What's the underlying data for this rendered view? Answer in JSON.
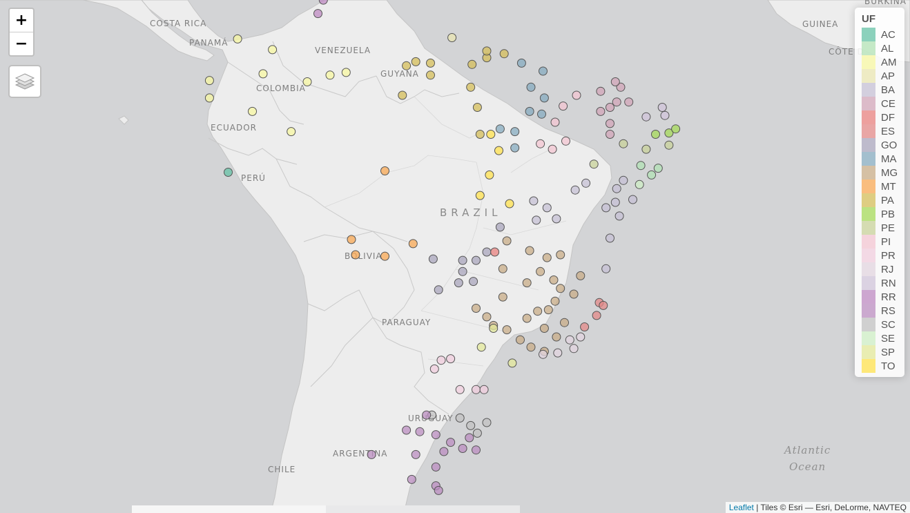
{
  "map": {
    "labels": {
      "costa_rica": "COSTA RICA",
      "panama": "PANAMÁ",
      "venezuela": "VENEZUELA",
      "guyana": "GUYANA",
      "colombia": "COLOMBIA",
      "ecuador": "ECUADOR",
      "peru": "PERÚ",
      "brazil": "BRAZIL",
      "bolivia": "BOLIVIA",
      "paraguay": "PARAGUAY",
      "uruguay": "URUGUAY",
      "argentina": "ARGENTINA",
      "chile": "CHILE",
      "guinea": "GUINEA",
      "cote": "CÔTE D",
      "burkina": "BURKINA",
      "atlantic": "Atlantic",
      "ocean": "Ocean"
    }
  },
  "controls": {
    "zoom_in": "+",
    "zoom_out": "−"
  },
  "legend": {
    "title": "UF",
    "items": [
      {
        "label": "AC",
        "color": "#66c2a5"
      },
      {
        "label": "AL",
        "color": "#b2e2b4"
      },
      {
        "label": "AM",
        "color": "#f7f7a1"
      },
      {
        "label": "AP",
        "color": "#e9e5b2"
      },
      {
        "label": "BA",
        "color": "#c5c0d4"
      },
      {
        "label": "CE",
        "color": "#d1a6b8"
      },
      {
        "label": "DF",
        "color": "#e8827f"
      },
      {
        "label": "ES",
        "color": "#e38a88"
      },
      {
        "label": "GO",
        "color": "#a9a6bc"
      },
      {
        "label": "MA",
        "color": "#85abbf"
      },
      {
        "label": "MG",
        "color": "#c8ac87"
      },
      {
        "label": "MT",
        "color": "#f8a854"
      },
      {
        "label": "PA",
        "color": "#d4be5a"
      },
      {
        "label": "PB",
        "color": "#a6d95a"
      },
      {
        "label": "PE",
        "color": "#c8d29a"
      },
      {
        "label": "PI",
        "color": "#f3c6d2"
      },
      {
        "label": "PR",
        "color": "#f0cddd"
      },
      {
        "label": "RJ",
        "color": "#e2d4df"
      },
      {
        "label": "RN",
        "color": "#d0c4d9"
      },
      {
        "label": "RR",
        "color": "#bd8ac1"
      },
      {
        "label": "RS",
        "color": "#bb8ec0"
      },
      {
        "label": "SC",
        "color": "#c2c2c2"
      },
      {
        "label": "SE",
        "color": "#cdeec4"
      },
      {
        "label": "SP",
        "color": "#e3e89a"
      },
      {
        "label": "TO",
        "color": "#ffe14d"
      }
    ]
  },
  "points": [
    {
      "uf": "AC",
      "lat": -10.0,
      "lon": -67.8
    },
    {
      "uf": "RR",
      "lat": 2.8,
      "lon": -60.7
    },
    {
      "uf": "RR",
      "lat": 1.8,
      "lon": -61.1
    },
    {
      "uf": "AM",
      "lat": -0.1,
      "lon": -67.1
    },
    {
      "uf": "AM",
      "lat": -0.9,
      "lon": -64.5
    },
    {
      "uf": "AM",
      "lat": -2.7,
      "lon": -65.2
    },
    {
      "uf": "AM",
      "lat": -3.2,
      "lon": -69.2
    },
    {
      "uf": "AM",
      "lat": -4.5,
      "lon": -69.2
    },
    {
      "uf": "AM",
      "lat": -3.3,
      "lon": -61.9
    },
    {
      "uf": "AM",
      "lat": -2.8,
      "lon": -60.2
    },
    {
      "uf": "AM",
      "lat": -2.6,
      "lon": -59.0
    },
    {
      "uf": "AM",
      "lat": -7.0,
      "lon": -63.1
    },
    {
      "uf": "AM",
      "lat": -5.5,
      "lon": -66.0
    },
    {
      "uf": "AP",
      "lat": 0.0,
      "lon": -51.1
    },
    {
      "uf": "PA",
      "lat": -1.8,
      "lon": -53.8
    },
    {
      "uf": "PA",
      "lat": -2.1,
      "lon": -54.5
    },
    {
      "uf": "PA",
      "lat": -1.9,
      "lon": -52.7
    },
    {
      "uf": "PA",
      "lat": -2.8,
      "lon": -52.7
    },
    {
      "uf": "PA",
      "lat": -2.0,
      "lon": -49.6
    },
    {
      "uf": "PA",
      "lat": -1.5,
      "lon": -48.5
    },
    {
      "uf": "PA",
      "lat": -1.0,
      "lon": -48.5
    },
    {
      "uf": "PA",
      "lat": -1.2,
      "lon": -47.2
    },
    {
      "uf": "PA",
      "lat": -3.7,
      "lon": -49.7
    },
    {
      "uf": "PA",
      "lat": -4.3,
      "lon": -54.8
    },
    {
      "uf": "PA",
      "lat": -5.2,
      "lon": -49.2
    },
    {
      "uf": "PA",
      "lat": -7.2,
      "lon": -49.0
    },
    {
      "uf": "MA",
      "lat": -2.5,
      "lon": -44.3
    },
    {
      "uf": "MA",
      "lat": -3.7,
      "lon": -45.2
    },
    {
      "uf": "MA",
      "lat": -4.5,
      "lon": -44.2
    },
    {
      "uf": "MA",
      "lat": -5.5,
      "lon": -45.3
    },
    {
      "uf": "MA",
      "lat": -6.8,
      "lon": -47.5
    },
    {
      "uf": "MA",
      "lat": -7.0,
      "lon": -46.4
    },
    {
      "uf": "MA",
      "lat": -5.7,
      "lon": -44.4
    },
    {
      "uf": "MA",
      "lat": -8.2,
      "lon": -46.4
    },
    {
      "uf": "MA",
      "lat": -1.9,
      "lon": -45.9
    },
    {
      "uf": "PI",
      "lat": -5.1,
      "lon": -42.8
    },
    {
      "uf": "PI",
      "lat": -4.3,
      "lon": -41.8
    },
    {
      "uf": "PI",
      "lat": -6.3,
      "lon": -43.4
    },
    {
      "uf": "PI",
      "lat": -7.7,
      "lon": -42.6
    },
    {
      "uf": "PI",
      "lat": -7.9,
      "lon": -44.5
    },
    {
      "uf": "PI",
      "lat": -8.3,
      "lon": -43.6
    },
    {
      "uf": "CE",
      "lat": -3.7,
      "lon": -38.5
    },
    {
      "uf": "CE",
      "lat": -4.0,
      "lon": -40.0
    },
    {
      "uf": "CE",
      "lat": -3.3,
      "lon": -38.9
    },
    {
      "uf": "CE",
      "lat": -4.8,
      "lon": -38.8
    },
    {
      "uf": "CE",
      "lat": -5.5,
      "lon": -40.0
    },
    {
      "uf": "CE",
      "lat": -5.2,
      "lon": -39.3
    },
    {
      "uf": "CE",
      "lat": -4.8,
      "lon": -37.9
    },
    {
      "uf": "CE",
      "lat": -6.4,
      "lon": -39.3
    },
    {
      "uf": "CE",
      "lat": -7.2,
      "lon": -39.3
    },
    {
      "uf": "RN",
      "lat": -5.8,
      "lon": -35.2
    },
    {
      "uf": "RN",
      "lat": -5.2,
      "lon": -35.4
    },
    {
      "uf": "RN",
      "lat": -5.9,
      "lon": -36.6
    },
    {
      "uf": "PB",
      "lat": -7.1,
      "lon": -34.9
    },
    {
      "uf": "PB",
      "lat": -7.2,
      "lon": -35.9
    },
    {
      "uf": "PB",
      "lat": -6.8,
      "lon": -34.4
    },
    {
      "uf": "PE",
      "lat": -8.0,
      "lon": -34.9
    },
    {
      "uf": "PE",
      "lat": -8.3,
      "lon": -36.6
    },
    {
      "uf": "PE",
      "lat": -7.9,
      "lon": -38.3
    },
    {
      "uf": "PE",
      "lat": -9.4,
      "lon": -40.5
    },
    {
      "uf": "AL",
      "lat": -9.7,
      "lon": -35.7
    },
    {
      "uf": "AL",
      "lat": -10.2,
      "lon": -36.2
    },
    {
      "uf": "AL",
      "lat": -9.5,
      "lon": -37.0
    },
    {
      "uf": "SE",
      "lat": -10.9,
      "lon": -37.1
    },
    {
      "uf": "BA",
      "lat": -10.8,
      "lon": -41.1
    },
    {
      "uf": "BA",
      "lat": -11.3,
      "lon": -41.9
    },
    {
      "uf": "BA",
      "lat": -12.1,
      "lon": -45.0
    },
    {
      "uf": "BA",
      "lat": -12.6,
      "lon": -44.0
    },
    {
      "uf": "BA",
      "lat": -13.5,
      "lon": -44.8
    },
    {
      "uf": "BA",
      "lat": -11.2,
      "lon": -38.8
    },
    {
      "uf": "BA",
      "lat": -12.2,
      "lon": -38.9
    },
    {
      "uf": "BA",
      "lat": -12.0,
      "lon": -37.6
    },
    {
      "uf": "BA",
      "lat": -12.6,
      "lon": -39.6
    },
    {
      "uf": "BA",
      "lat": -13.4,
      "lon": -43.3
    },
    {
      "uf": "BA",
      "lat": -14.8,
      "lon": -39.3
    },
    {
      "uf": "BA",
      "lat": -17.0,
      "lon": -39.6
    },
    {
      "uf": "BA",
      "lat": -10.6,
      "lon": -38.3
    },
    {
      "uf": "BA",
      "lat": -13.2,
      "lon": -38.6
    },
    {
      "uf": "TO",
      "lat": -10.2,
      "lon": -48.3
    },
    {
      "uf": "TO",
      "lat": -7.2,
      "lon": -48.2
    },
    {
      "uf": "TO",
      "lat": -8.4,
      "lon": -47.6
    },
    {
      "uf": "TO",
      "lat": -11.7,
      "lon": -49.0
    },
    {
      "uf": "TO",
      "lat": -12.3,
      "lon": -46.8
    },
    {
      "uf": "MT",
      "lat": -9.9,
      "lon": -56.1
    },
    {
      "uf": "MT",
      "lat": -14.9,
      "lon": -58.6
    },
    {
      "uf": "MT",
      "lat": -16.0,
      "lon": -58.3
    },
    {
      "uf": "MT",
      "lat": -16.1,
      "lon": -56.1
    },
    {
      "uf": "MT",
      "lat": -15.2,
      "lon": -54.0
    },
    {
      "uf": "GO",
      "lat": -16.3,
      "lon": -52.5
    },
    {
      "uf": "GO",
      "lat": -16.4,
      "lon": -50.3
    },
    {
      "uf": "GO",
      "lat": -17.2,
      "lon": -50.3
    },
    {
      "uf": "GO",
      "lat": -16.4,
      "lon": -49.3
    },
    {
      "uf": "GO",
      "lat": -15.8,
      "lon": -48.5
    },
    {
      "uf": "GO",
      "lat": -17.9,
      "lon": -49.5
    },
    {
      "uf": "GO",
      "lat": -18.0,
      "lon": -50.6
    },
    {
      "uf": "GO",
      "lat": -18.5,
      "lon": -52.1
    },
    {
      "uf": "GO",
      "lat": -14.0,
      "lon": -47.5
    },
    {
      "uf": "DF",
      "lat": -15.8,
      "lon": -47.9
    },
    {
      "uf": "MG",
      "lat": -15.0,
      "lon": -47.0
    },
    {
      "uf": "MG",
      "lat": -15.7,
      "lon": -45.3
    },
    {
      "uf": "MG",
      "lat": -16.2,
      "lon": -44.0
    },
    {
      "uf": "MG",
      "lat": -16.0,
      "lon": -43.0
    },
    {
      "uf": "MG",
      "lat": -17.0,
      "lon": -47.3
    },
    {
      "uf": "MG",
      "lat": -17.2,
      "lon": -44.5
    },
    {
      "uf": "MG",
      "lat": -18.0,
      "lon": -45.5
    },
    {
      "uf": "MG",
      "lat": -17.8,
      "lon": -43.5
    },
    {
      "uf": "MG",
      "lat": -18.4,
      "lon": -43.0
    },
    {
      "uf": "MG",
      "lat": -19.0,
      "lon": -47.3
    },
    {
      "uf": "MG",
      "lat": -19.8,
      "lon": -49.3
    },
    {
      "uf": "MG",
      "lat": -19.9,
      "lon": -43.9
    },
    {
      "uf": "MG",
      "lat": -19.3,
      "lon": -43.4
    },
    {
      "uf": "MG",
      "lat": -18.8,
      "lon": -42.0
    },
    {
      "uf": "MG",
      "lat": -20.5,
      "lon": -45.5
    },
    {
      "uf": "MG",
      "lat": -20.0,
      "lon": -44.7
    },
    {
      "uf": "MG",
      "lat": -21.2,
      "lon": -44.2
    },
    {
      "uf": "MG",
      "lat": -21.8,
      "lon": -43.3
    },
    {
      "uf": "MG",
      "lat": -20.8,
      "lon": -42.7
    },
    {
      "uf": "MG",
      "lat": -22.0,
      "lon": -46.0
    },
    {
      "uf": "MG",
      "lat": -21.3,
      "lon": -47.0
    },
    {
      "uf": "MG",
      "lat": -22.5,
      "lon": -45.2
    },
    {
      "uf": "MG",
      "lat": -20.4,
      "lon": -48.5
    },
    {
      "uf": "MG",
      "lat": -21.0,
      "lon": -48.0
    },
    {
      "uf": "MG",
      "lat": -22.8,
      "lon": -44.2
    },
    {
      "uf": "MG",
      "lat": -17.5,
      "lon": -41.5
    },
    {
      "uf": "ES",
      "lat": -20.3,
      "lon": -40.3
    },
    {
      "uf": "ES",
      "lat": -19.4,
      "lon": -40.1
    },
    {
      "uf": "ES",
      "lat": -19.6,
      "lon": -39.8
    },
    {
      "uf": "ES",
      "lat": -21.1,
      "lon": -41.2
    },
    {
      "uf": "RJ",
      "lat": -22.9,
      "lon": -43.2
    },
    {
      "uf": "RJ",
      "lat": -22.0,
      "lon": -42.3
    },
    {
      "uf": "RJ",
      "lat": -22.6,
      "lon": -42.0
    },
    {
      "uf": "RJ",
      "lat": -23.0,
      "lon": -44.3
    },
    {
      "uf": "RJ",
      "lat": -21.8,
      "lon": -41.5
    },
    {
      "uf": "SP",
      "lat": -21.2,
      "lon": -48.0
    },
    {
      "uf": "SP",
      "lat": -22.5,
      "lon": -48.9
    },
    {
      "uf": "SP",
      "lat": -23.6,
      "lon": -46.6
    },
    {
      "uf": "PR",
      "lat": -23.4,
      "lon": -51.9
    },
    {
      "uf": "PR",
      "lat": -23.3,
      "lon": -51.2
    },
    {
      "uf": "PR",
      "lat": -24.0,
      "lon": -52.4
    },
    {
      "uf": "PR",
      "lat": -25.4,
      "lon": -49.3
    },
    {
      "uf": "PR",
      "lat": -25.4,
      "lon": -50.5
    },
    {
      "uf": "PR",
      "lat": -25.4,
      "lon": -48.7
    },
    {
      "uf": "SC",
      "lat": -27.1,
      "lon": -52.6
    },
    {
      "uf": "SC",
      "lat": -27.3,
      "lon": -50.5
    },
    {
      "uf": "SC",
      "lat": -27.6,
      "lon": -48.5
    },
    {
      "uf": "SC",
      "lat": -27.8,
      "lon": -49.7
    },
    {
      "uf": "SC",
      "lat": -28.3,
      "lon": -49.2
    },
    {
      "uf": "RS",
      "lat": -27.1,
      "lon": -53.0
    },
    {
      "uf": "RS",
      "lat": -28.1,
      "lon": -54.5
    },
    {
      "uf": "RS",
      "lat": -28.2,
      "lon": -53.5
    },
    {
      "uf": "RS",
      "lat": -28.4,
      "lon": -52.3
    },
    {
      "uf": "RS",
      "lat": -28.9,
      "lon": -51.2
    },
    {
      "uf": "RS",
      "lat": -28.6,
      "lon": -49.8
    },
    {
      "uf": "RS",
      "lat": -29.3,
      "lon": -50.3
    },
    {
      "uf": "RS",
      "lat": -29.4,
      "lon": -49.3
    },
    {
      "uf": "RS",
      "lat": -29.5,
      "lon": -51.7
    },
    {
      "uf": "RS",
      "lat": -29.7,
      "lon": -53.8
    },
    {
      "uf": "RS",
      "lat": -29.7,
      "lon": -57.1
    },
    {
      "uf": "RS",
      "lat": -30.5,
      "lon": -52.3
    },
    {
      "uf": "RS",
      "lat": -31.3,
      "lon": -54.1
    },
    {
      "uf": "RS",
      "lat": -31.7,
      "lon": -52.3
    },
    {
      "uf": "RS",
      "lat": -32.0,
      "lon": -52.1
    },
    {
      "uf": "RS",
      "lat": -33.5,
      "lon": -53.4
    }
  ],
  "attribution": {
    "leaflet": "Leaflet",
    "tiles": " | Tiles © Esri — Esri, DeLorme, NAVTEQ"
  }
}
